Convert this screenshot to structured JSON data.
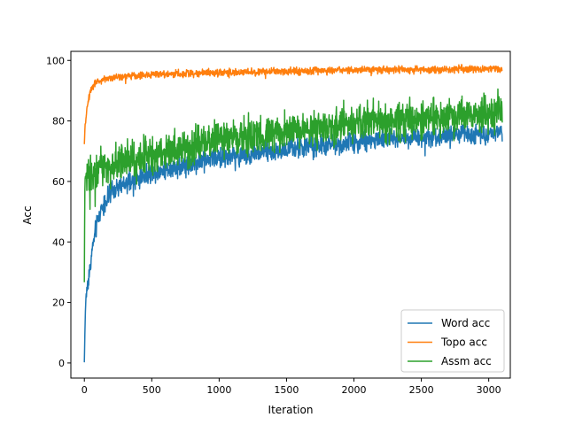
{
  "chart_data": {
    "type": "line",
    "title": "",
    "xlabel": "Iteration",
    "ylabel": "Acc",
    "xlim": [
      -100,
      3160
    ],
    "ylim": [
      -5,
      103
    ],
    "xticks": [
      0,
      500,
      1000,
      1500,
      2000,
      2500,
      3000
    ],
    "yticks": [
      0,
      20,
      40,
      60,
      80,
      100
    ],
    "grid": false,
    "legend_position": "lower right",
    "series": [
      {
        "name": "Word acc",
        "color": "#1f77b4",
        "x": [
          0,
          5,
          10,
          20,
          30,
          40,
          50,
          60,
          80,
          100,
          125,
          150,
          200,
          250,
          300,
          400,
          500,
          600,
          700,
          800,
          900,
          1000,
          1200,
          1400,
          1600,
          1800,
          2000,
          2200,
          2400,
          2600,
          2800,
          3000,
          3100
        ],
        "values": [
          0,
          12,
          20,
          25,
          28,
          31,
          34,
          38,
          43,
          47,
          51,
          53,
          56,
          58,
          59,
          61,
          63,
          64,
          65,
          66,
          67,
          68,
          69,
          70,
          71,
          72,
          73,
          74,
          74.5,
          75,
          75.5,
          76,
          76.5
        ],
        "noise": 2.5
      },
      {
        "name": "Topo acc",
        "color": "#ff7f0e",
        "x": [
          0,
          5,
          10,
          20,
          30,
          40,
          50,
          60,
          80,
          100,
          150,
          200,
          300,
          500,
          700,
          1000,
          1500,
          2000,
          2500,
          3000,
          3100
        ],
        "values": [
          72,
          78,
          80,
          84,
          87,
          89,
          90.5,
          91.5,
          92.5,
          93,
          93.8,
          94.2,
          94.8,
          95.3,
          95.7,
          96,
          96.4,
          96.8,
          97,
          97.2,
          97.3
        ],
        "noise": 0.9
      },
      {
        "name": "Assm acc",
        "color": "#2ca02c",
        "x": [
          0,
          3,
          6,
          10,
          20,
          30,
          50,
          80,
          100,
          150,
          200,
          300,
          400,
          500,
          600,
          700,
          800,
          900,
          1000,
          1200,
          1400,
          1600,
          1800,
          2000,
          2200,
          2400,
          2600,
          2800,
          3000,
          3100
        ],
        "values": [
          26,
          56,
          60,
          61,
          62,
          62.5,
          63,
          63.5,
          64,
          65,
          65.5,
          67,
          68,
          69,
          70,
          71,
          72,
          73,
          74,
          75,
          76,
          77,
          78,
          79,
          80,
          80.5,
          81,
          82,
          82.5,
          83
        ],
        "noise": 4.5
      }
    ]
  }
}
